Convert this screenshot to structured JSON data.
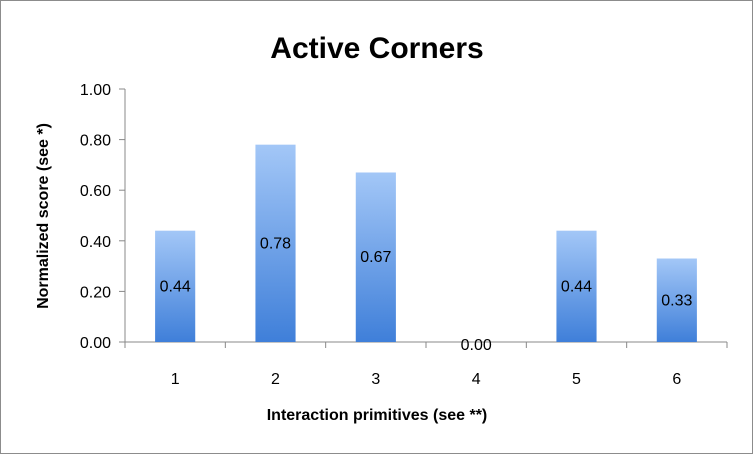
{
  "chart_data": {
    "type": "bar",
    "title": "Active Corners",
    "xlabel": "Interaction primitives (see **)",
    "ylabel": "Normalized score (see *)",
    "categories": [
      "1",
      "2",
      "3",
      "4",
      "5",
      "6"
    ],
    "values": [
      0.44,
      0.78,
      0.67,
      0.0,
      0.44,
      0.33
    ],
    "value_labels": [
      "0.44",
      "0.78",
      "0.67",
      "0.00",
      "0.44",
      "0.33"
    ],
    "ylim": [
      0,
      1
    ],
    "yticks": [
      0,
      0.2,
      0.4,
      0.6,
      0.8,
      1.0
    ],
    "ytick_labels": [
      "0.00",
      "0.20",
      "0.40",
      "0.60",
      "0.80",
      "1.00"
    ],
    "grid": false,
    "legend": "none",
    "bar_color_top": "#a3c7f7",
    "bar_color_bottom": "#3f7fd9"
  }
}
